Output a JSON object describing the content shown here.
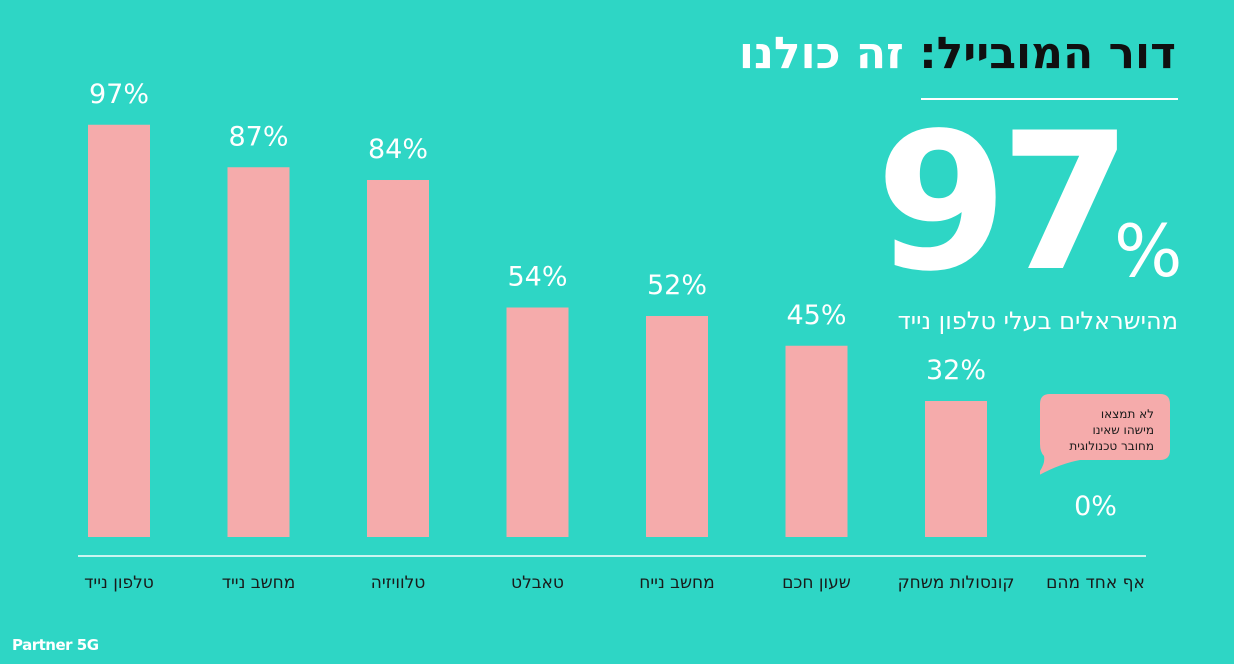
{
  "header": {
    "title_main": "דור המובייל:",
    "title_accent": "זה כולנו"
  },
  "highlight": {
    "number": "97",
    "percent_sign": "%",
    "caption": "מהישראלים בעלי טלפון נייד"
  },
  "bubble": {
    "lines": [
      "לא תמצאו",
      "מישהו שאינו",
      "מחובר טכנולוגית"
    ]
  },
  "brand": {
    "logo": "Partner 5G"
  },
  "colors": {
    "background": "#2ed6c5",
    "bar": "#f5abab",
    "text": "#ffffff",
    "title": "#101010"
  },
  "chart_data": {
    "type": "bar",
    "categories": [
      "טלפון נייד",
      "מחשב נייד",
      "טלוויזיה",
      "טאבלט",
      "מחשב נייח",
      "שעון חכם",
      "קונסולות משחק",
      "אף אחד מהם"
    ],
    "values": [
      97,
      87,
      84,
      54,
      52,
      45,
      32,
      0
    ],
    "value_labels": [
      "97%",
      "87%",
      "84%",
      "54%",
      "52%",
      "45%",
      "32%",
      "0%"
    ],
    "ylim": [
      0,
      100
    ],
    "grid": false,
    "axis_line": true
  }
}
